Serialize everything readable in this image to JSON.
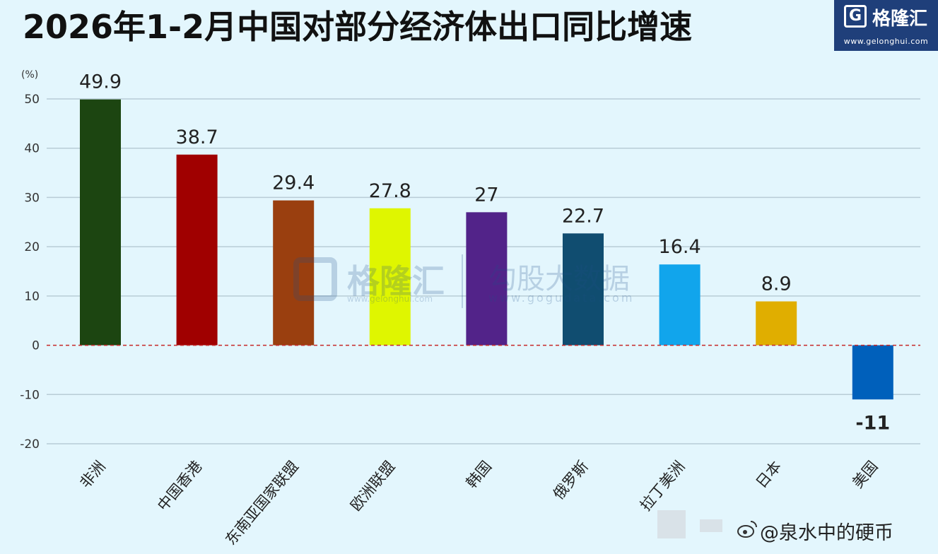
{
  "title": "2026年1-2月中国对部分经济体出口同比增速",
  "logo": {
    "mark": "G",
    "name": "格隆汇",
    "url": "www.gelonghui.com"
  },
  "watermark": {
    "name": "格隆汇",
    "url": "www.gelonghui.com",
    "name2": "勾股大数据",
    "url2": "www.gogudata.com"
  },
  "footer": {
    "text": "@泉水中的硬币",
    "icon": "weibo-icon"
  },
  "colors": {
    "background": "#e3f6fd",
    "grid": "#b8ccd6",
    "zero_line": "#c62828"
  },
  "chart_data": {
    "type": "bar",
    "title": "2026年1-2月中国对部分经济体出口同比增速",
    "ylabel": "(%)",
    "xlabel": "",
    "ylim": [
      -20,
      50
    ],
    "yticks": [
      50,
      40,
      30,
      20,
      10,
      0,
      -10,
      -20
    ],
    "grid": true,
    "categories": [
      "非洲",
      "中国香港",
      "东南亚国家联盟",
      "欧洲联盟",
      "韩国",
      "俄罗斯",
      "拉丁美洲",
      "日本",
      "美国"
    ],
    "values": [
      49.9,
      38.7,
      29.4,
      27.8,
      27,
      22.7,
      16.4,
      8.9,
      -11
    ],
    "value_labels": [
      "49.9",
      "38.7",
      "29.4",
      "27.8",
      "27",
      "22.7",
      "16.4",
      "8.9",
      "-11"
    ],
    "bar_colors": [
      "#1c4511",
      "#a00000",
      "#9a3f0f",
      "#dff600",
      "#522389",
      "#104d70",
      "#11a5ec",
      "#e0ae00",
      "#0060bb"
    ]
  }
}
